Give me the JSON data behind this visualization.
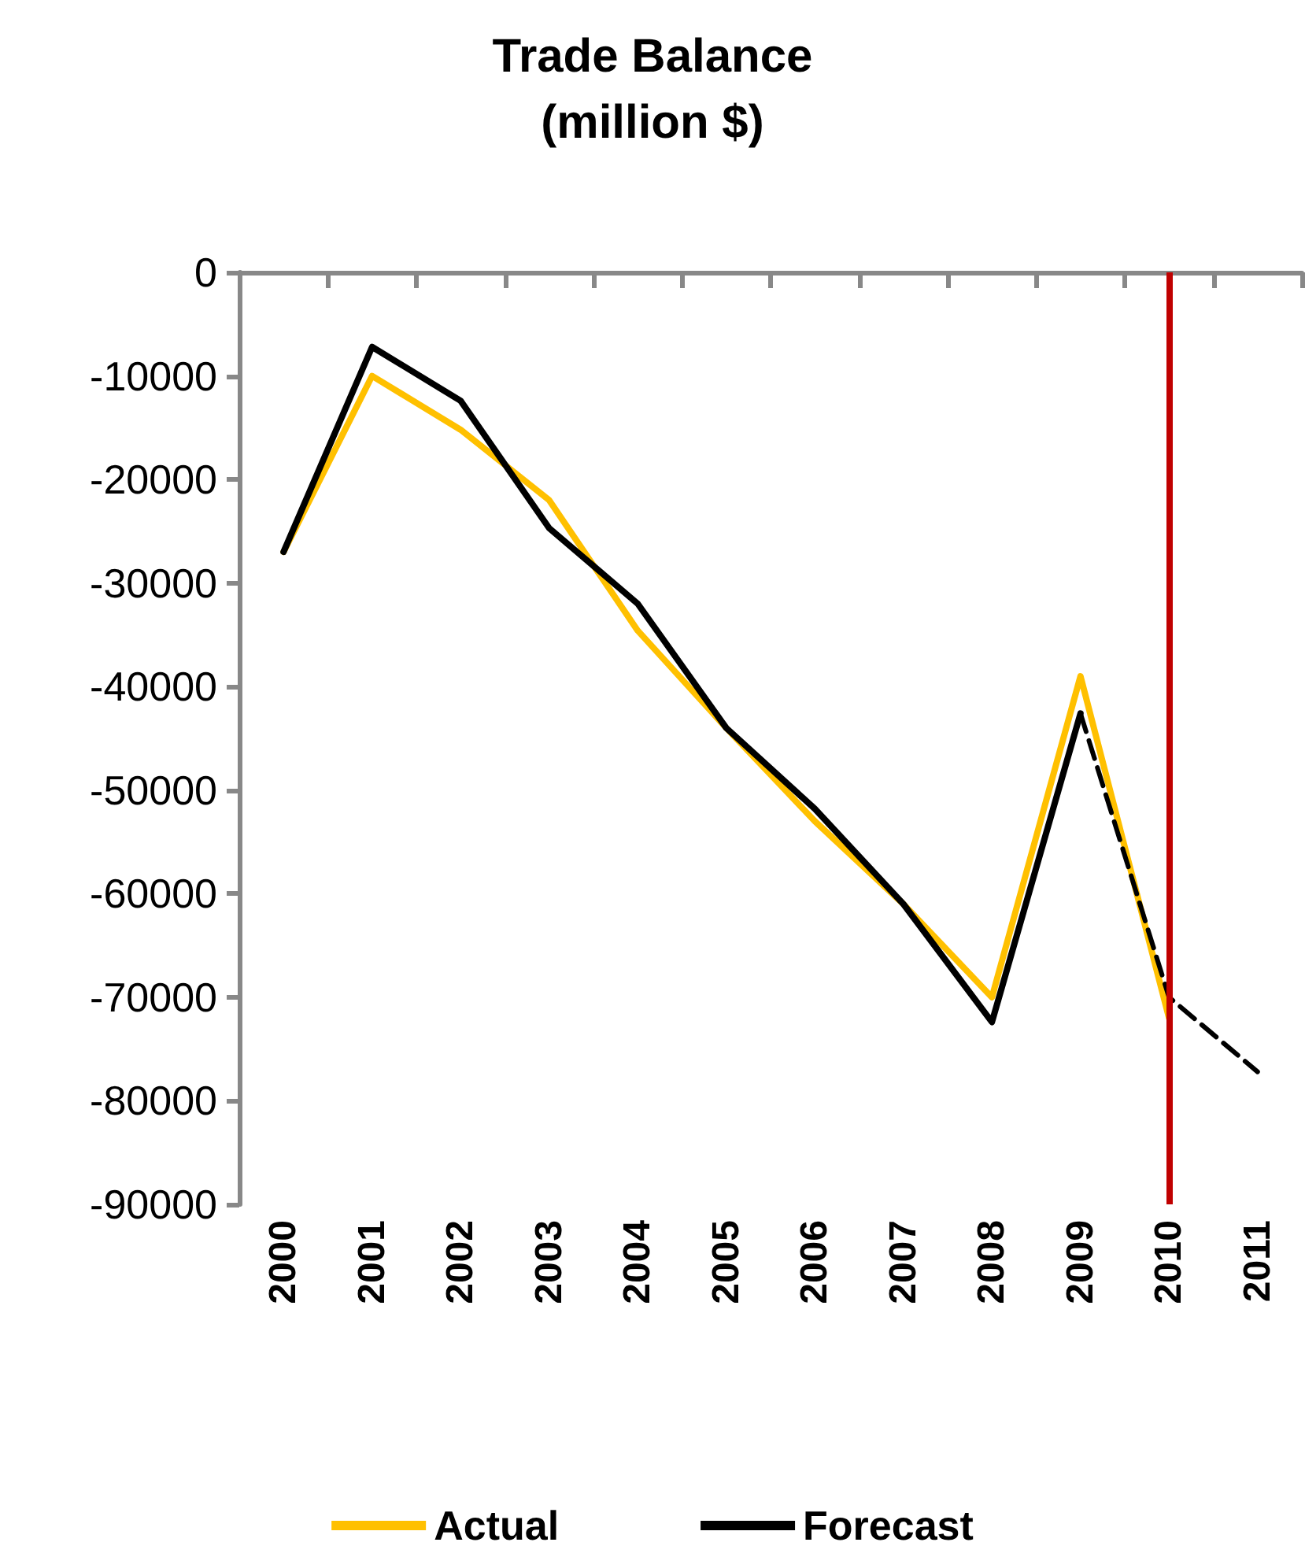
{
  "chart_data": {
    "type": "line",
    "title": "Trade Balance\n(million $)",
    "categories": [
      "2000",
      "2001",
      "2002",
      "2003",
      "2004",
      "2005",
      "2006",
      "2007",
      "2008",
      "2009",
      "2010",
      "2011"
    ],
    "series": [
      {
        "name": "Actual",
        "color": "#ffc000",
        "values": [
          -27000,
          -10000,
          -15200,
          -22000,
          -34600,
          -44000,
          -53000,
          -61000,
          -70000,
          -39000,
          -72000,
          null
        ]
      },
      {
        "name": "Forecast",
        "color": "#000000",
        "values": [
          -27000,
          -7200,
          -12400,
          -24700,
          -32000,
          -44000,
          -51800,
          -61000,
          -72400,
          -42600,
          null,
          null
        ]
      },
      {
        "color": "#000000",
        "line_style": "dashed",
        "values": [
          null,
          null,
          null,
          null,
          null,
          null,
          null,
          null,
          null,
          -42600,
          -70000,
          -77200
        ]
      }
    ],
    "ylim": [
      -90000,
      0
    ],
    "yticks": [
      -90000,
      -80000,
      -70000,
      -60000,
      -50000,
      -40000,
      -30000,
      -20000,
      -10000,
      0
    ],
    "ref_lines": [
      {
        "axis": "x",
        "value": "2010",
        "color": "#c00000"
      }
    ],
    "grid": false,
    "legend": "bottom",
    "marker": "none",
    "line_style": "solid"
  }
}
